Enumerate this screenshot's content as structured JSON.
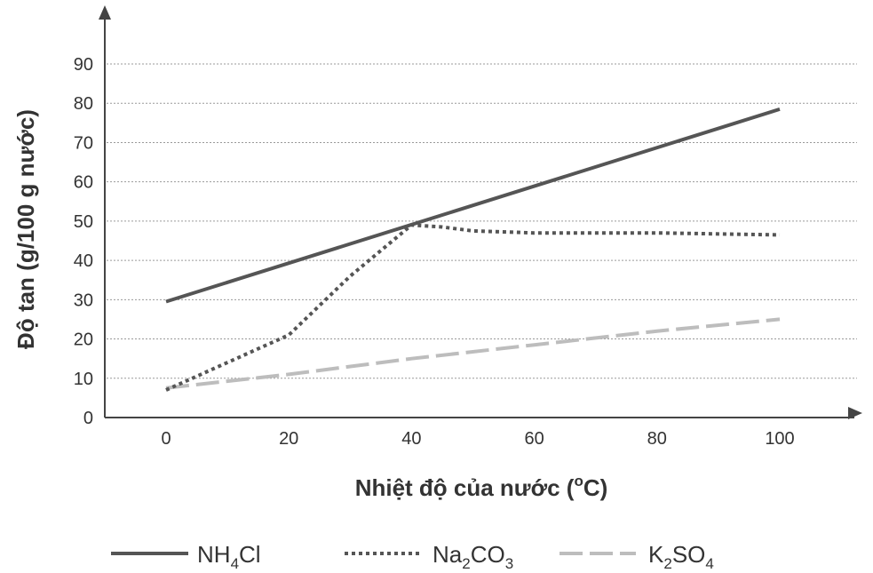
{
  "chart_data": {
    "type": "line",
    "title": "",
    "xlabel_prefix": "Nhiệt độ của nước (",
    "xlabel_sup": "o",
    "xlabel_suffix": "C)",
    "ylabel": "Độ tan (g/100 g nước)",
    "x_ticks": [
      "0",
      "20",
      "40",
      "60",
      "80",
      "100"
    ],
    "y_ticks": [
      "0",
      "10",
      "20",
      "30",
      "40",
      "50",
      "60",
      "70",
      "80",
      "90"
    ],
    "xlim": [
      -10,
      113
    ],
    "ylim": [
      0,
      100
    ],
    "grid": true,
    "legend_position": "bottom",
    "series": [
      {
        "name": "NH4Cl",
        "legend": {
          "before": "NH",
          "sub": "4",
          "after": "Cl"
        },
        "style": "solid",
        "color": "#555555",
        "x": [
          0,
          100
        ],
        "y": [
          29.5,
          78.5
        ]
      },
      {
        "name": "Na2CO3",
        "legend": {
          "before": "Na",
          "sub": "2",
          "after": "CO",
          "sub2": "3"
        },
        "style": "dotted",
        "color": "#555555",
        "x": [
          0,
          20,
          30,
          40,
          45,
          50,
          60,
          80,
          100
        ],
        "y": [
          7,
          21,
          36,
          49,
          48.5,
          47.5,
          47,
          47,
          46.5
        ]
      },
      {
        "name": "K2SO4",
        "legend": {
          "before": "K",
          "sub": "2",
          "after": "SO",
          "sub2": "4"
        },
        "style": "dashed",
        "color": "#bdbdbd",
        "x": [
          0,
          20,
          40,
          60,
          80,
          100
        ],
        "y": [
          7.5,
          11,
          15,
          18.5,
          22,
          25
        ]
      }
    ]
  }
}
